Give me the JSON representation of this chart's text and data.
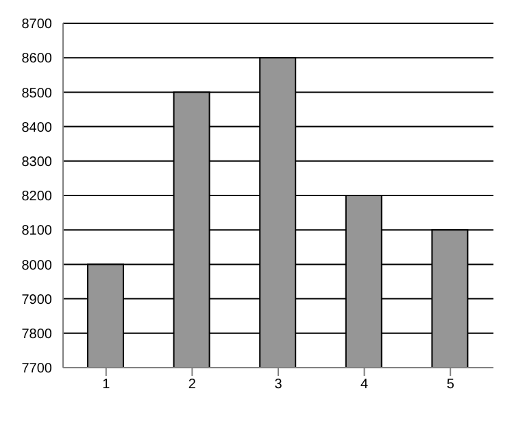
{
  "chart_data": {
    "type": "bar",
    "categories": [
      "1",
      "2",
      "3",
      "4",
      "5"
    ],
    "values": [
      8000,
      8500,
      8600,
      8200,
      8100
    ],
    "color": "#969696",
    "ylim": [
      7700,
      8700
    ],
    "yticks": [
      7700,
      7800,
      7900,
      8000,
      8100,
      8200,
      8300,
      8400,
      8500,
      8600,
      8700
    ],
    "grid": "y",
    "legend": false
  }
}
